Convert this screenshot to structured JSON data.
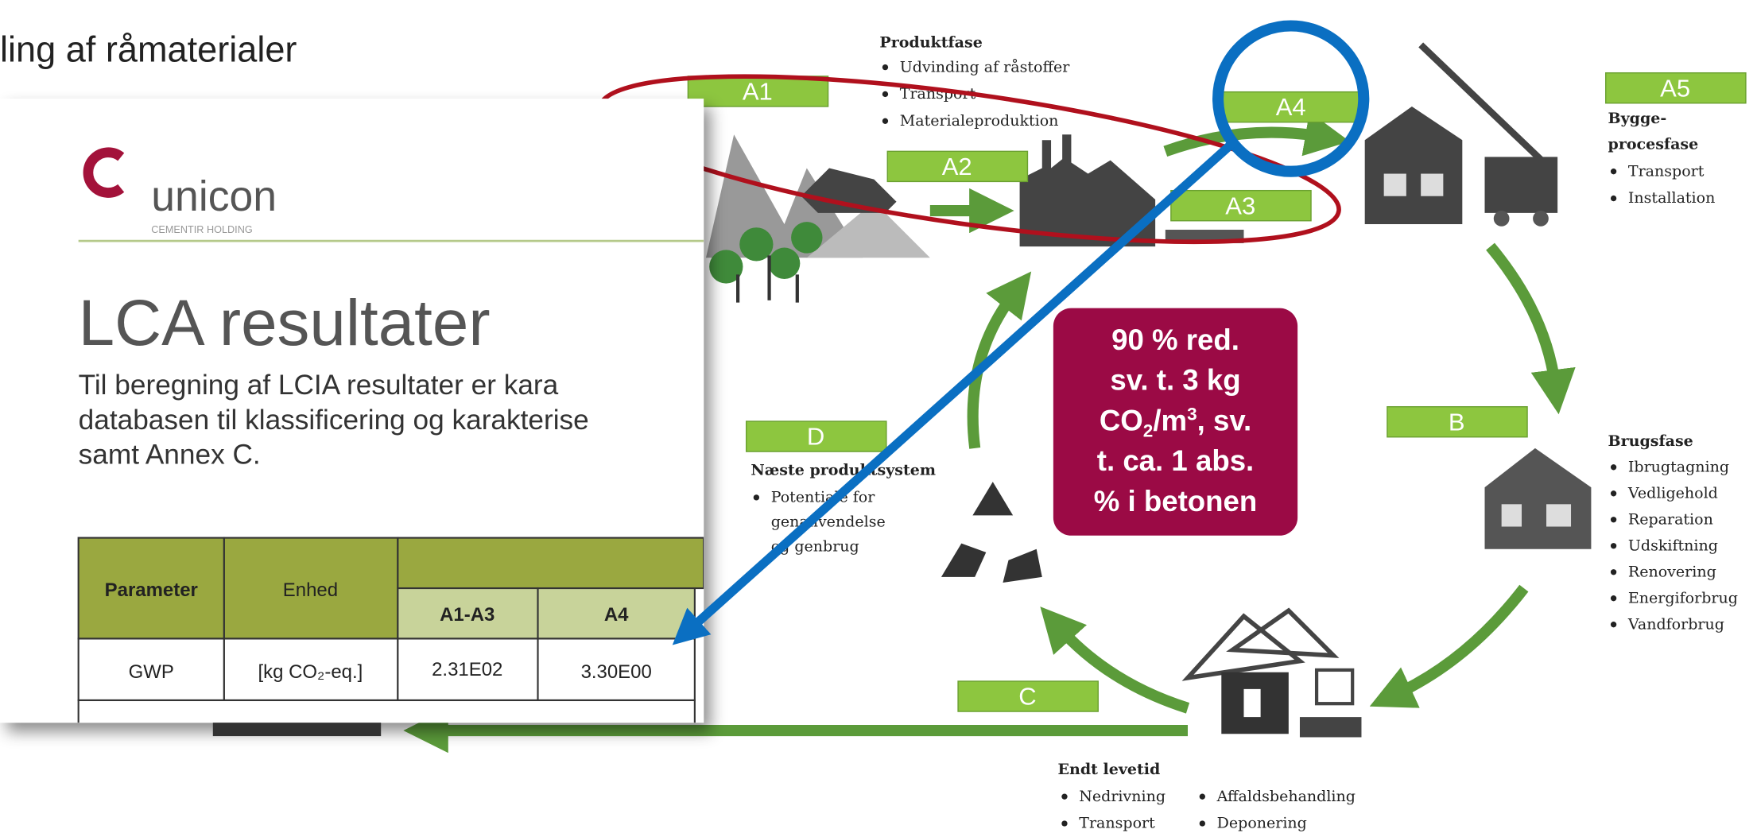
{
  "background": {
    "heading": "ling af råmaterialer"
  },
  "document": {
    "logo": "unicon",
    "logo_sub": "CEMENTIR HOLDING",
    "title": "LCA resultater",
    "paragraph": [
      "Til beregning af LCIA resultater er kara",
      "databasen til klassificering og karakterise",
      "samt Annex C."
    ],
    "table": {
      "header": [
        "Parameter",
        "Enhed",
        "A1-A3",
        "A4"
      ],
      "rows": [
        [
          "GWP",
          "[kg CO₂-eq.]",
          "2.31E02",
          "3.30E00"
        ]
      ]
    }
  },
  "diagram": {
    "stages": [
      "A1",
      "A2",
      "A3",
      "A4",
      "A5",
      "B",
      "C",
      "D"
    ],
    "phases": [
      {
        "title": [
          "Produktfase"
        ],
        "items": [
          "Udvinding af råstoffer",
          "Transport",
          "Materialeproduktion"
        ]
      },
      {
        "title": [
          "Bygge-",
          "procesfase"
        ],
        "items": [
          "Transport",
          "Installation"
        ]
      },
      {
        "title": [
          "Brugsfase"
        ],
        "items": [
          "Ibrugtagning",
          "Vedligehold",
          "Reparation",
          "Udskiftning",
          "Renovering",
          "Energiforbrug",
          "Vandforbrug"
        ]
      },
      {
        "title": [
          "Endt levetid"
        ],
        "items": [
          "Nedrivning",
          "Transport",
          "Affaldsbehandling",
          "Deponering"
        ]
      },
      {
        "title": [
          "Næste produktsystem"
        ],
        "items": [
          "Potentiale for",
          "genanvendelse",
          "og genbrug"
        ]
      }
    ],
    "callout": {
      "lines": [
        "90 % red.",
        "sv. t. 3 kg",
        [
          "CO",
          "2",
          "/m",
          "3",
          ", sv."
        ],
        "t. ca. 1 abs.",
        "% i betonen"
      ]
    }
  }
}
